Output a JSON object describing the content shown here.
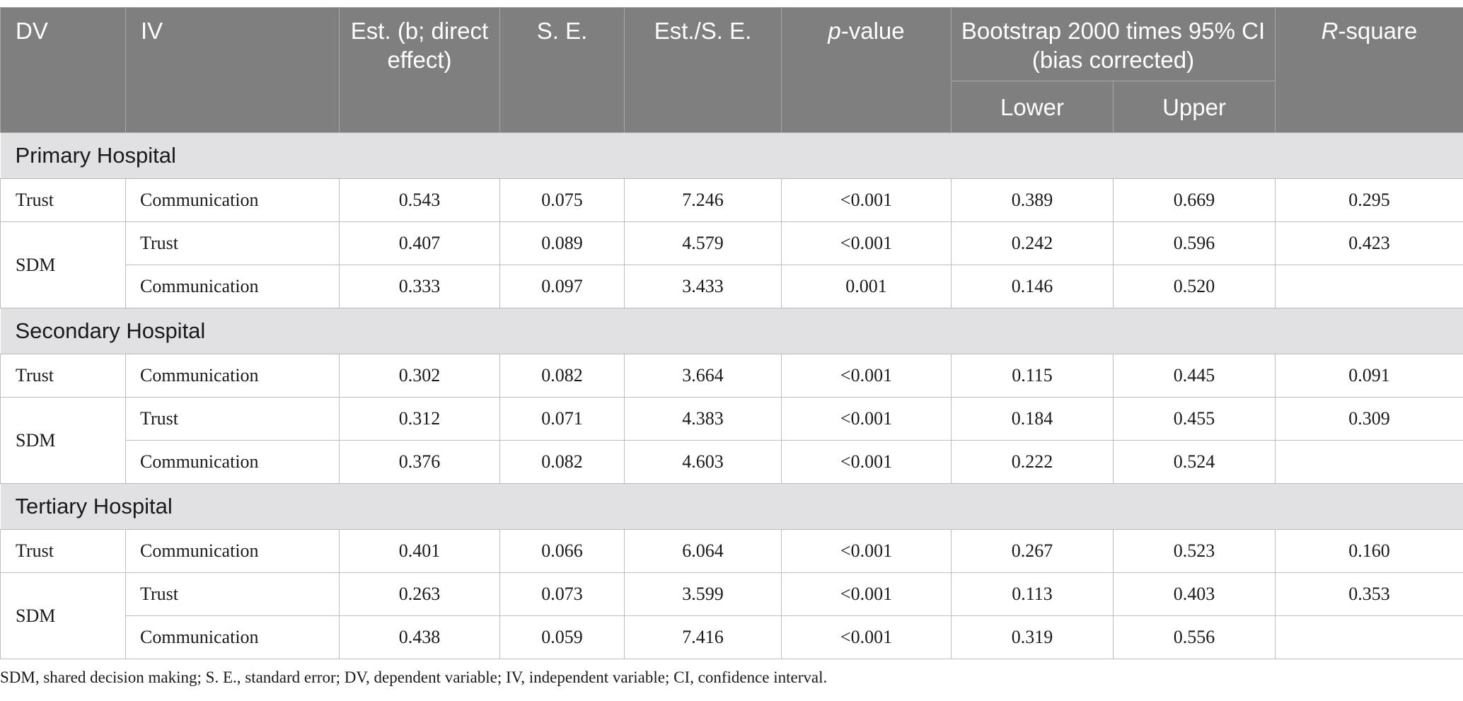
{
  "header": {
    "dv": "DV",
    "iv": "IV",
    "est": "Est. (b; direct effect)",
    "se": "S. E.",
    "est_se": "Est./S. E.",
    "p_italic": "p",
    "p_rest": "-value",
    "bootstrap": "Bootstrap 2000 times 95% CI (bias corrected)",
    "lower": "Lower",
    "upper": "Upper",
    "r_italic": "R",
    "r_rest": "-square"
  },
  "sections": [
    {
      "title": "Primary Hospital",
      "trust_row": {
        "dv": "Trust",
        "iv": "Communication",
        "est": "0.543",
        "se": "0.075",
        "est_se": "7.246",
        "p": "<0.001",
        "lower": "0.389",
        "upper": "0.669",
        "r2": "0.295"
      },
      "sdm_dv": "SDM",
      "sdm_rows": [
        {
          "iv": "Trust",
          "est": "0.407",
          "se": "0.089",
          "est_se": "4.579",
          "p": "<0.001",
          "lower": "0.242",
          "upper": "0.596",
          "r2": "0.423"
        },
        {
          "iv": "Communication",
          "est": "0.333",
          "se": "0.097",
          "est_se": "3.433",
          "p": "0.001",
          "lower": "0.146",
          "upper": "0.520",
          "r2": ""
        }
      ]
    },
    {
      "title": "Secondary Hospital",
      "trust_row": {
        "dv": "Trust",
        "iv": "Communication",
        "est": "0.302",
        "se": "0.082",
        "est_se": "3.664",
        "p": "<0.001",
        "lower": "0.115",
        "upper": "0.445",
        "r2": "0.091"
      },
      "sdm_dv": "SDM",
      "sdm_rows": [
        {
          "iv": "Trust",
          "est": "0.312",
          "se": "0.071",
          "est_se": "4.383",
          "p": "<0.001",
          "lower": "0.184",
          "upper": "0.455",
          "r2": "0.309"
        },
        {
          "iv": "Communication",
          "est": "0.376",
          "se": "0.082",
          "est_se": "4.603",
          "p": "<0.001",
          "lower": "0.222",
          "upper": "0.524",
          "r2": ""
        }
      ]
    },
    {
      "title": "Tertiary Hospital",
      "trust_row": {
        "dv": "Trust",
        "iv": "Communication",
        "est": "0.401",
        "se": "0.066",
        "est_se": "6.064",
        "p": "<0.001",
        "lower": "0.267",
        "upper": "0.523",
        "r2": "0.160"
      },
      "sdm_dv": "SDM",
      "sdm_rows": [
        {
          "iv": "Trust",
          "est": "0.263",
          "se": "0.073",
          "est_se": "3.599",
          "p": "<0.001",
          "lower": "0.113",
          "upper": "0.403",
          "r2": "0.353"
        },
        {
          "iv": "Communication",
          "est": "0.438",
          "se": "0.059",
          "est_se": "7.416",
          "p": "<0.001",
          "lower": "0.319",
          "upper": "0.556",
          "r2": ""
        }
      ]
    }
  ],
  "footnote": "SDM, shared decision making; S. E., standard error; DV, dependent variable; IV, independent variable; CI, confidence interval.",
  "colors": {
    "header_bg": "#7f7f7f",
    "section_bg": "#e1e0e2",
    "grid": "#bdbdbd"
  }
}
